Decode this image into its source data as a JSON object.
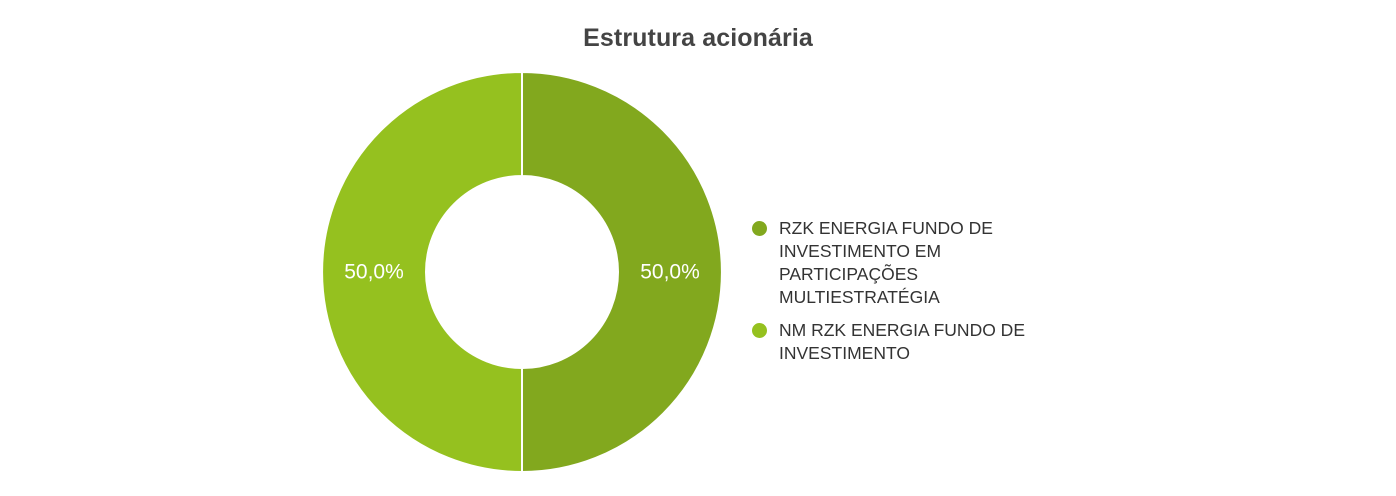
{
  "chart_data": {
    "type": "pie",
    "donut": true,
    "title": "Estrutura acionária",
    "slices": [
      {
        "label": "RZK ENERGIA FUNDO DE INVESTIMENTO EM PARTICIPAÇÕES MULTIESTRATÉGIA",
        "value": 50.0,
        "display": "50,0%",
        "color": "#82A81E"
      },
      {
        "label": "NM RZK ENERGIA FUNDO DE INVESTIMENTO",
        "value": 50.0,
        "display": "50,0%",
        "color": "#95C11F"
      }
    ],
    "legend_position": "right"
  }
}
